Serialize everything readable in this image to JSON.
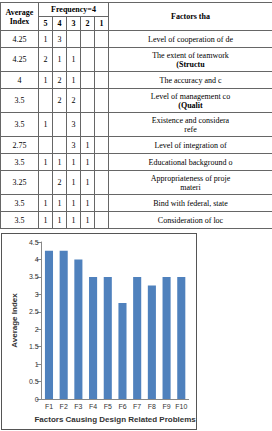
{
  "table": {
    "header": {
      "average": [
        "Average",
        "Index"
      ],
      "frequency": "Frequency=4",
      "frequency_columns": [
        5,
        4,
        3,
        2,
        1
      ],
      "factors": "Factors tha"
    },
    "rows": [
      {
        "average": 4.25,
        "frequency": [
          1,
          3,
          null,
          null,
          null
        ],
        "factor": [
          "Level of cooperation of de"
        ]
      },
      {
        "average": 4.25,
        "frequency": [
          2,
          1,
          1,
          null,
          null
        ],
        "factor": [
          "The extent of teamwork",
          "(Structu"
        ]
      },
      {
        "average": 4,
        "frequency": [
          1,
          2,
          1,
          null,
          null
        ],
        "factor": [
          "The accuracy and c"
        ]
      },
      {
        "average": 3.5,
        "frequency": [
          null,
          2,
          2,
          null,
          null
        ],
        "factor": [
          "Level of management co",
          "(Qualit"
        ]
      },
      {
        "average": 3.5,
        "frequency": [
          1,
          null,
          3,
          null,
          null
        ],
        "factor": [
          "Existence and considera",
          "refe"
        ]
      },
      {
        "average": 2.75,
        "frequency": [
          null,
          null,
          3,
          1,
          null
        ],
        "factor": [
          "Level of integration of"
        ]
      },
      {
        "average": 3.5,
        "frequency": [
          1,
          1,
          1,
          1,
          null
        ],
        "factor": [
          "Educational background o"
        ]
      },
      {
        "average": 3.25,
        "frequency": [
          null,
          2,
          1,
          1,
          null
        ],
        "factor": [
          "Appropriateness of proje",
          "materi"
        ]
      },
      {
        "average": 3.5,
        "frequency": [
          1,
          1,
          1,
          1,
          null
        ],
        "factor": [
          "Bind with federal, state"
        ]
      },
      {
        "average": 3.5,
        "frequency": [
          1,
          1,
          1,
          1,
          null
        ],
        "factor": [
          "Consideration of loc"
        ]
      }
    ]
  },
  "chart_data": {
    "type": "bar",
    "x_label": "Factors Causing Design Related Problems",
    "y_label": "Average Index",
    "categories": [
      "F1",
      "F2",
      "F3",
      "F4",
      "F5",
      "F6",
      "F7",
      "F8",
      "F9",
      "F10"
    ],
    "values": [
      4.25,
      4.25,
      4,
      3.5,
      3.5,
      2.75,
      3.5,
      3.25,
      3.5,
      3.5
    ],
    "color": "#4f81bd",
    "ylim": [
      0,
      4.5
    ],
    "yticks": [
      0,
      0.5,
      1,
      1.5,
      2,
      2.5,
      3,
      3.5,
      4,
      4.5
    ],
    "grid": false
  }
}
